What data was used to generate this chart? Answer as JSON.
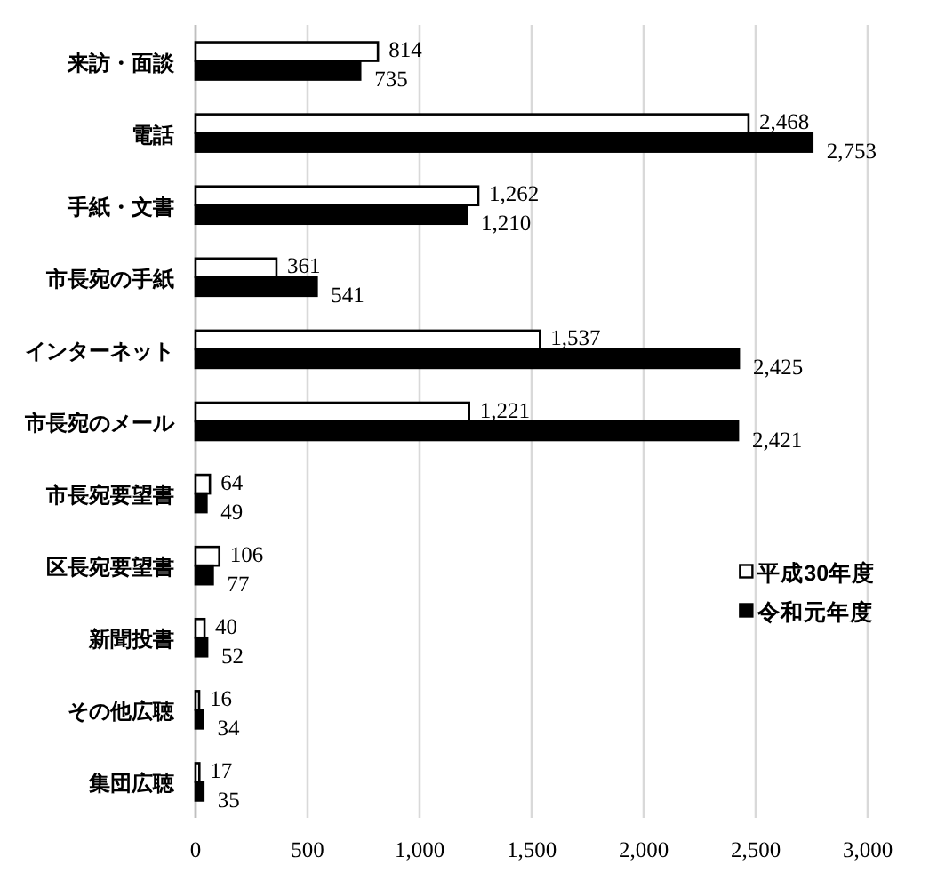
{
  "chart_data": {
    "type": "bar",
    "orientation": "horizontal",
    "categories": [
      "来訪・面談",
      "電話",
      "手紙・文書",
      "市長宛の手紙",
      "インターネット",
      "市長宛のメール",
      "市長宛要望書",
      "区長宛要望書",
      "新聞投書",
      "その他広聴",
      "集団広聴"
    ],
    "series": [
      {
        "name": "平成30年度",
        "color": "#ffffff",
        "values": [
          814,
          2468,
          1262,
          361,
          1537,
          1221,
          64,
          106,
          40,
          16,
          17
        ],
        "value_labels": [
          "814",
          "2,468",
          "1,262",
          "361",
          "1,537",
          "1,221",
          "64",
          "106",
          "40",
          "16",
          "17"
        ]
      },
      {
        "name": "令和元年度",
        "color": "#000000",
        "values": [
          735,
          2753,
          1210,
          541,
          2425,
          2421,
          49,
          77,
          52,
          34,
          35
        ],
        "value_labels": [
          "735",
          "2,753",
          "1,210",
          "541",
          "2,425",
          "2,421",
          "49",
          "77",
          "52",
          "34",
          "35"
        ]
      }
    ],
    "xlim": [
      0,
      3000
    ],
    "xticks": [
      0,
      500,
      {
        "value": 1000,
        "label": "1,000"
      },
      {
        "value": 1500,
        "label": "1,500"
      },
      {
        "value": 2000,
        "label": "2,000"
      },
      {
        "value": 2500,
        "label": "2,500"
      },
      {
        "value": 3000,
        "label": "3,000"
      }
    ],
    "grid": "x",
    "legend": "right"
  }
}
